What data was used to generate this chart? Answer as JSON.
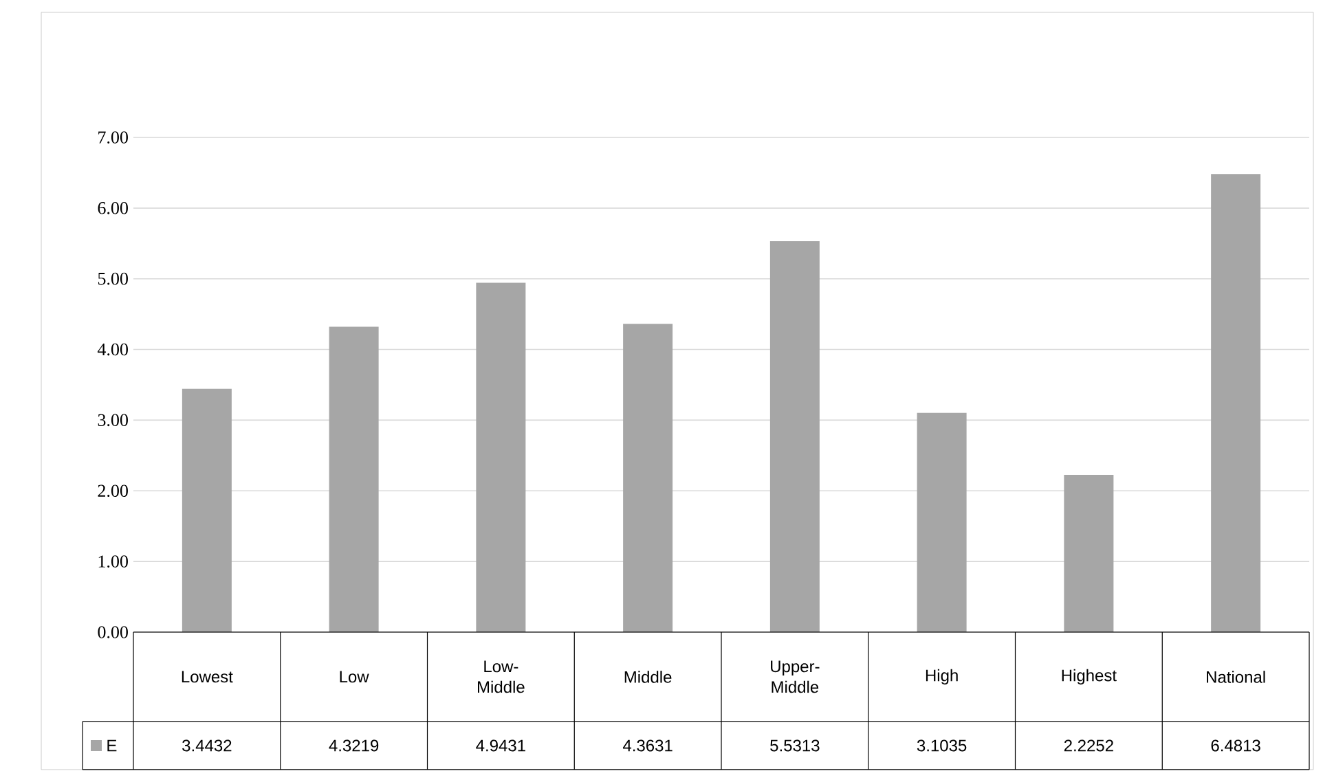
{
  "chart_data": {
    "type": "bar",
    "categories": [
      "Lowest",
      "Low",
      "Low-Middle",
      "Middle",
      "Upper-Middle",
      "High",
      "Highest",
      "National"
    ],
    "series": [
      {
        "name": "E",
        "color": "#a6a6a6",
        "values": [
          3.4432,
          4.3219,
          4.9431,
          4.3631,
          5.5313,
          3.1035,
          2.2252,
          6.4813
        ]
      }
    ],
    "ylim": [
      0,
      7
    ],
    "yticks": [
      {
        "value": 0,
        "label": "0.00"
      },
      {
        "value": 1,
        "label": "1.00"
      },
      {
        "value": 2,
        "label": "2.00"
      },
      {
        "value": 3,
        "label": "3.00"
      },
      {
        "value": 4,
        "label": "4.00"
      },
      {
        "value": 5,
        "label": "5.00"
      },
      {
        "value": 6,
        "label": "6.00"
      },
      {
        "value": 7,
        "label": "7.00"
      }
    ],
    "grid": "y",
    "data_labels": true,
    "legend": "bottom"
  }
}
